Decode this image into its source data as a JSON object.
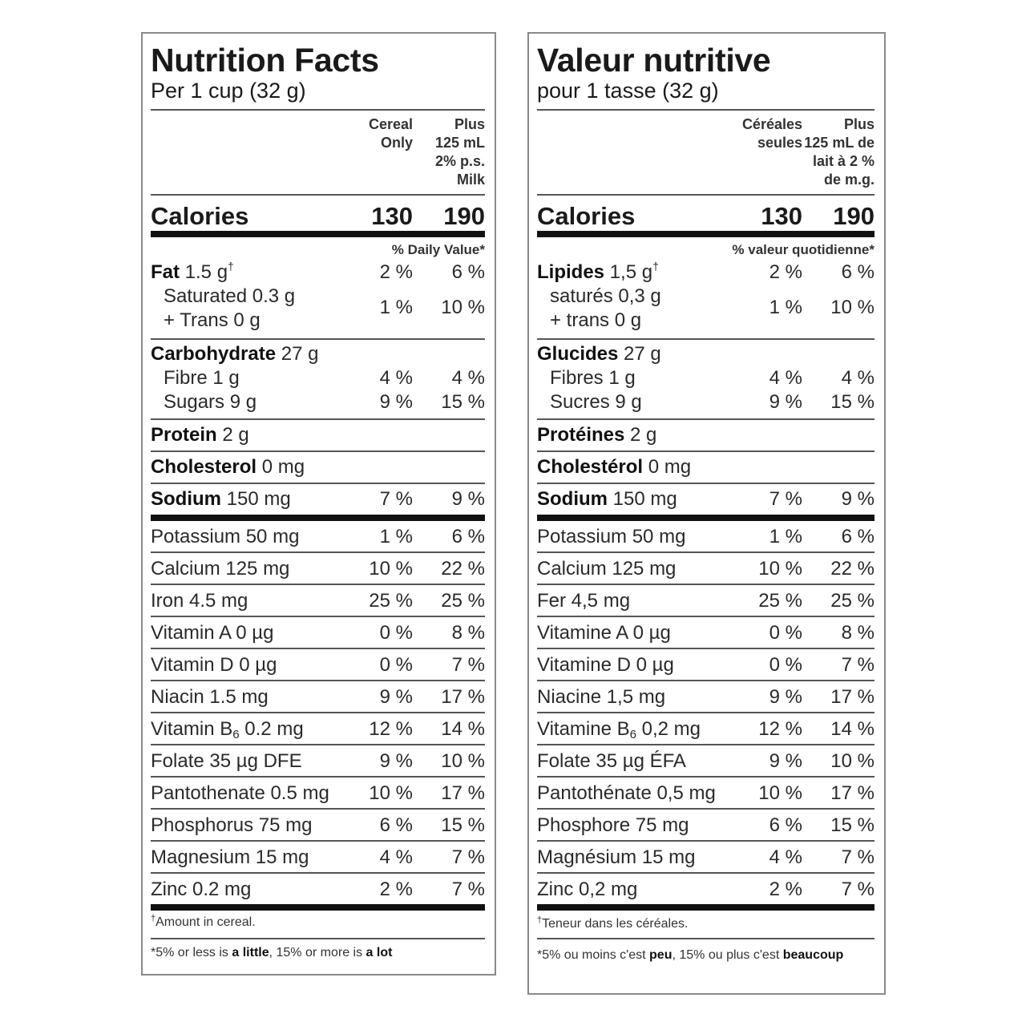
{
  "en": {
    "title": "Nutrition Facts",
    "serving": "Per 1 cup (32 g)",
    "col_a": "Cereal\nOnly",
    "col_b": "Plus\n125 mL\n2% p.s.\nMilk",
    "calories_label": "Calories",
    "calories_a": "130",
    "calories_b": "190",
    "dv_header": "% Daily Value*",
    "fat": {
      "label": "Fat",
      "amount": " 1.5 g",
      "mark": "†",
      "a": "2 %",
      "b": "6 %"
    },
    "saturated": {
      "label": "Saturated 0.3 g",
      "a": "1 %",
      "b": "10 %"
    },
    "trans": {
      "label": "+ Trans 0 g"
    },
    "carb": {
      "label": "Carbohydrate",
      "amount": " 27 g"
    },
    "fibre": {
      "label": "Fibre 1 g",
      "a": "4 %",
      "b": "4 %"
    },
    "sugars": {
      "label": "Sugars 9 g",
      "a": "9 %",
      "b": "15 %"
    },
    "protein": {
      "label": "Protein",
      "amount": " 2 g"
    },
    "cholesterol": {
      "label": "Cholesterol",
      "amount": " 0 mg"
    },
    "sodium": {
      "label": "Sodium",
      "amount": " 150 mg",
      "a": "7 %",
      "b": "9 %"
    },
    "minerals": [
      {
        "label": "Potassium 50 mg",
        "a": "1 %",
        "b": "6 %"
      },
      {
        "label": "Calcium 125 mg",
        "a": "10 %",
        "b": "22 %"
      },
      {
        "label": "Iron 4.5 mg",
        "a": "25 %",
        "b": "25 %"
      },
      {
        "label": "Vitamin A 0 µg",
        "a": "0 %",
        "b": "8 %"
      },
      {
        "label": "Vitamin D 0 µg",
        "a": "0 %",
        "b": "7 %"
      },
      {
        "label": "Niacin 1.5 mg",
        "a": "9 %",
        "b": "17 %"
      },
      {
        "label_pre": "Vitamin B",
        "label_sub": "6",
        "label_post": " 0.2 mg",
        "a": "12 %",
        "b": "14 %"
      },
      {
        "label": "Folate 35 µg DFE",
        "a": "9 %",
        "b": "10 %"
      },
      {
        "label": "Pantothenate 0.5 mg",
        "a": "10 %",
        "b": "17 %"
      },
      {
        "label": "Phosphorus 75 mg",
        "a": "6 %",
        "b": "15 %"
      },
      {
        "label": "Magnesium 15 mg",
        "a": "4 %",
        "b": "7 %"
      },
      {
        "label": "Zinc 0.2 mg",
        "a": "2 %",
        "b": "7 %"
      }
    ],
    "footnote1_mark": "†",
    "footnote1": "Amount in cereal.",
    "footnote2_pre": "*5% or less is ",
    "footnote2_bold1": "a little",
    "footnote2_mid": ", 15% or more is ",
    "footnote2_bold2": "a lot"
  },
  "fr": {
    "title": "Valeur nutritive",
    "serving": "pour 1 tasse (32 g)",
    "col_a": "Céréales\nseules",
    "col_b": "Plus\n125 mL de\nlait à 2 %\nde m.g.",
    "calories_label": "Calories",
    "calories_a": "130",
    "calories_b": "190",
    "dv_header": "% valeur quotidienne*",
    "fat": {
      "label": "Lipides",
      "amount": " 1,5 g",
      "mark": "†",
      "a": "2 %",
      "b": "6 %"
    },
    "saturated": {
      "label": "saturés 0,3 g",
      "a": "1 %",
      "b": "10 %"
    },
    "trans": {
      "label": "+ trans 0 g"
    },
    "carb": {
      "label": "Glucides",
      "amount": " 27 g"
    },
    "fibre": {
      "label": "Fibres 1 g",
      "a": "4 %",
      "b": "4 %"
    },
    "sugars": {
      "label": "Sucres 9 g",
      "a": "9 %",
      "b": "15 %"
    },
    "protein": {
      "label": "Protéines",
      "amount": " 2 g"
    },
    "cholesterol": {
      "label": "Cholestérol",
      "amount": " 0 mg"
    },
    "sodium": {
      "label": "Sodium",
      "amount": " 150 mg",
      "a": "7 %",
      "b": "9 %"
    },
    "minerals": [
      {
        "label": "Potassium 50 mg",
        "a": "1 %",
        "b": "6 %"
      },
      {
        "label": "Calcium 125 mg",
        "a": "10 %",
        "b": "22 %"
      },
      {
        "label": "Fer 4,5 mg",
        "a": "25 %",
        "b": "25 %"
      },
      {
        "label": "Vitamine A 0 µg",
        "a": "0 %",
        "b": "8 %"
      },
      {
        "label": "Vitamine D 0 µg",
        "a": "0 %",
        "b": "7 %"
      },
      {
        "label": "Niacine 1,5 mg",
        "a": "9 %",
        "b": "17 %"
      },
      {
        "label_pre": "Vitamine B",
        "label_sub": "6",
        "label_post": " 0,2 mg",
        "a": "12 %",
        "b": "14 %"
      },
      {
        "label": "Folate 35 µg ÉFA",
        "a": "9 %",
        "b": "10 %"
      },
      {
        "label": "Pantothénate 0,5 mg",
        "a": "10 %",
        "b": "17 %"
      },
      {
        "label": "Phosphore 75 mg",
        "a": "6 %",
        "b": "15 %"
      },
      {
        "label": "Magnésium 15 mg",
        "a": "4 %",
        "b": "7 %"
      },
      {
        "label": "Zinc 0,2 mg",
        "a": "2 %",
        "b": "7 %"
      }
    ],
    "footnote1_mark": "†",
    "footnote1": "Teneur dans les céréales.",
    "footnote2_pre": "*5% ou moins c'est ",
    "footnote2_bold1": "peu",
    "footnote2_mid": ", 15% ou plus c'est ",
    "footnote2_bold2": "beaucoup"
  }
}
